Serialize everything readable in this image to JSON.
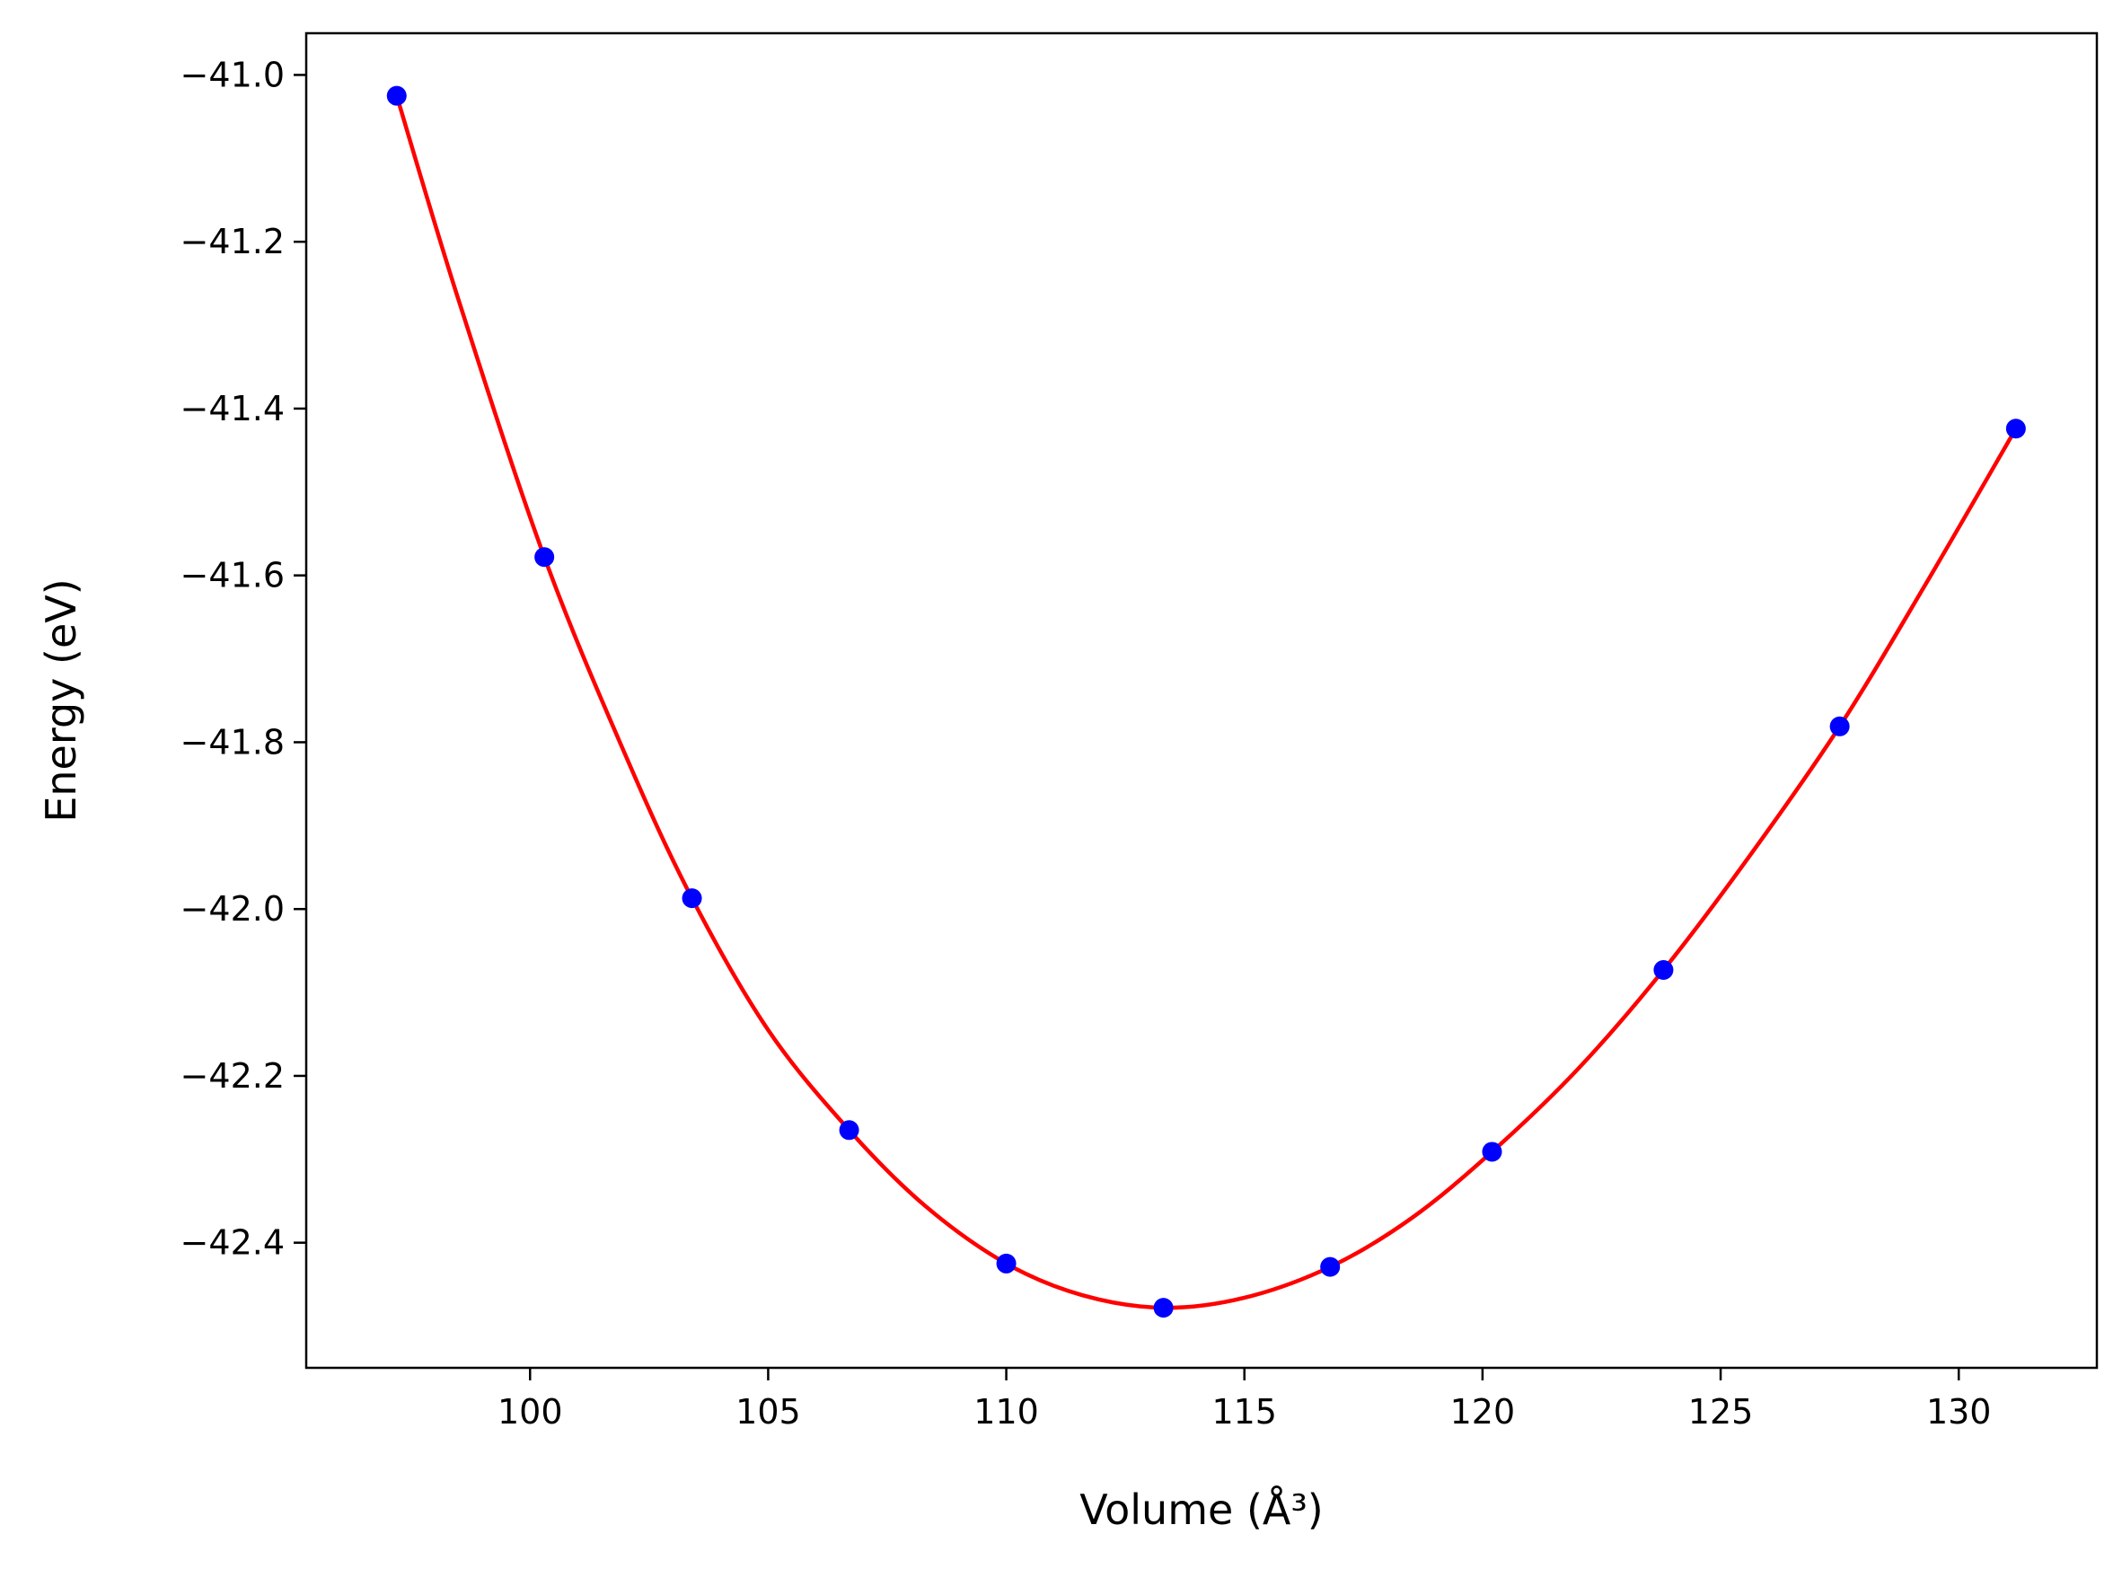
{
  "chart_data": {
    "type": "scatter",
    "title": "",
    "xlabel": "Volume (Å³)",
    "ylabel": "Energy (eV)",
    "xlim": [
      95.3,
      132.9
    ],
    "ylim": [
      -42.55,
      -40.95
    ],
    "xticks": [
      100,
      105,
      110,
      115,
      120,
      125,
      130
    ],
    "xtick_labels": [
      "100",
      "105",
      "110",
      "115",
      "120",
      "125",
      "130"
    ],
    "yticks": [
      -41.0,
      -41.2,
      -41.4,
      -41.6,
      -41.8,
      -42.0,
      -42.2,
      -42.4
    ],
    "ytick_labels": [
      "−41.0",
      "−41.2",
      "−41.4",
      "−41.6",
      "−41.8",
      "−42.0",
      "−42.2",
      "−42.4"
    ],
    "grid": false,
    "legend": "none",
    "series": [
      {
        "kind": "points",
        "color": "#0000ff",
        "x": [
          97.2,
          100.3,
          103.4,
          106.7,
          110.0,
          113.3,
          116.8,
          120.2,
          123.8,
          127.5,
          131.2
        ],
        "y": [
          -41.025,
          -41.578,
          -41.987,
          -42.265,
          -42.425,
          -42.478,
          -42.429,
          -42.291,
          -42.073,
          -41.781,
          -41.424
        ]
      },
      {
        "kind": "fit-curve",
        "color": "#ff0000",
        "x": [
          97.2,
          98.5,
          100.3,
          102.0,
          103.4,
          105.0,
          106.7,
          108.3,
          110.0,
          111.6,
          113.3,
          115.0,
          116.8,
          118.5,
          120.2,
          122.0,
          123.8,
          125.6,
          127.5,
          129.3,
          131.2
        ],
        "y": [
          -41.025,
          -41.27,
          -41.578,
          -41.815,
          -41.987,
          -42.145,
          -42.265,
          -42.356,
          -42.425,
          -42.463,
          -42.478,
          -42.466,
          -42.429,
          -42.371,
          -42.291,
          -42.192,
          -42.073,
          -41.937,
          -41.781,
          -41.611,
          -41.424
        ]
      }
    ]
  }
}
